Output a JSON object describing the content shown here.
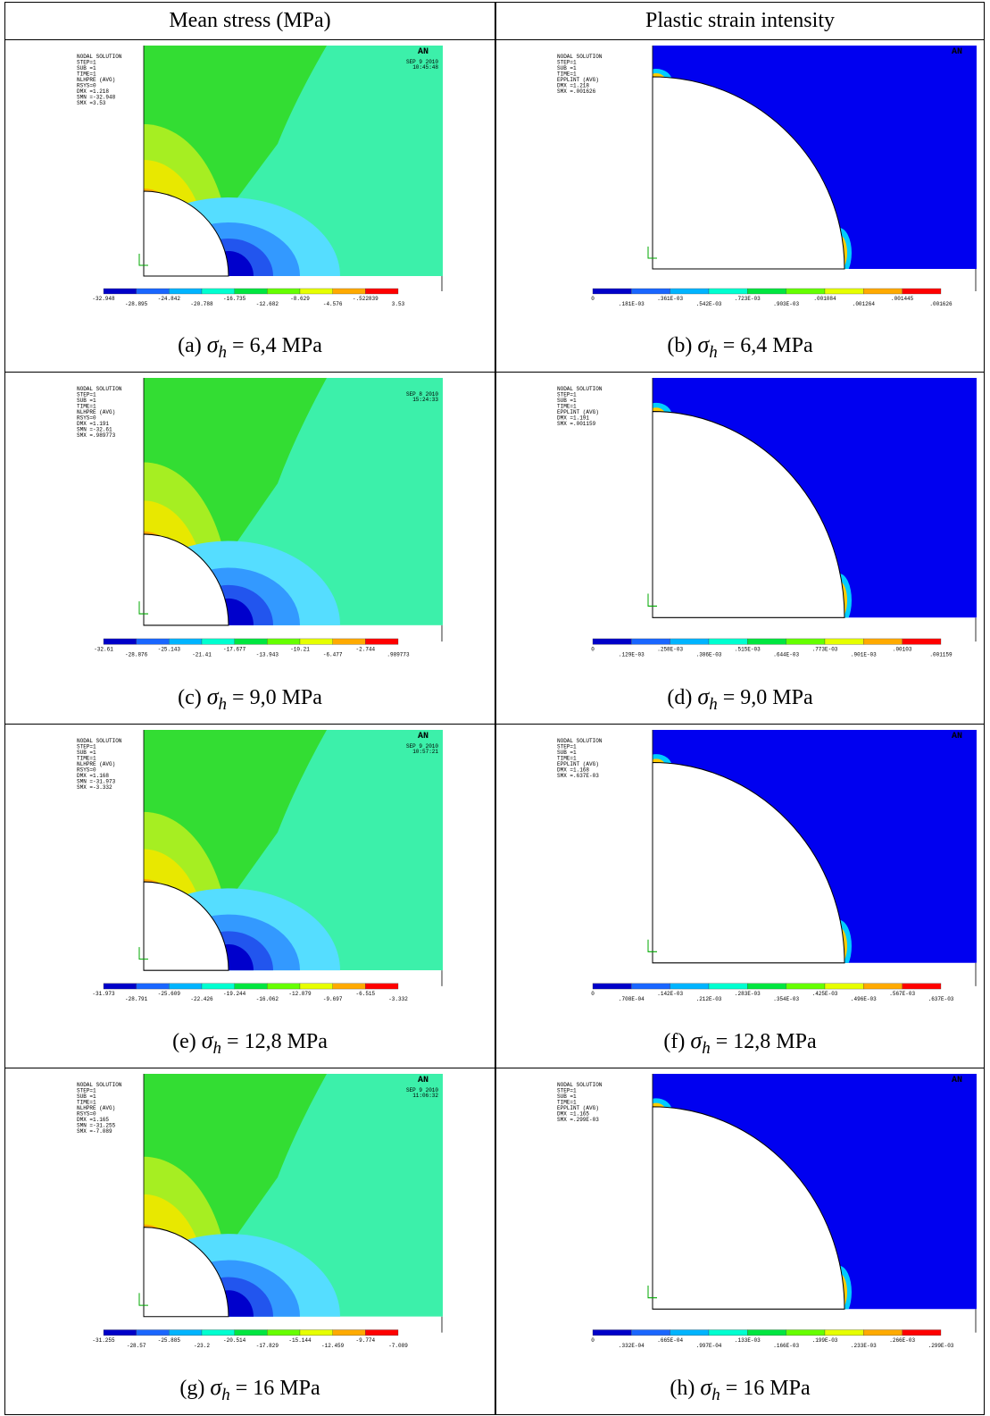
{
  "table": {
    "headers": [
      "Mean stress (MPa)",
      "Plastic strain intensity"
    ],
    "rows": [
      [
        {
          "plot": {
            "info": [
              "NODAL SOLUTION",
              "STEP=1",
              "SUB =1",
              "TIME=1",
              "NLHPRE    (AVG)",
              "RSYS=0",
              "DMX =1.218",
              "SMN =-32.948",
              "SMX =3.53"
            ],
            "date": "SEP  9 2010",
            "time": "10:45:48",
            "logo": "AN",
            "legend": [
              "-32.948",
              "-28.895",
              "-24.842",
              "-20.788",
              "-16.735",
              "-12.682",
              "-8.629",
              "-4.576",
              "-.522839",
              "3.53"
            ]
          },
          "caption": {
            "label": "(a)",
            "symbol": "σ",
            "sub": "h",
            "value": "= 6,4  MPa"
          }
        },
        {
          "plot": {
            "info": [
              "NODAL SOLUTION",
              "STEP=1",
              "SUB =1",
              "TIME=1",
              "EPPLINT  (AVG)",
              "DMX =1.218",
              "SMX =.001626"
            ],
            "logo": "AN",
            "legend": [
              "0",
              ".181E-03",
              ".361E-03",
              ".542E-03",
              ".723E-03",
              ".903E-03",
              ".001084",
              ".001264",
              ".001445",
              ".001626"
            ]
          },
          "caption": {
            "label": "(b)",
            "symbol": "σ",
            "sub": "h",
            "value": "= 6,4 MPa"
          }
        }
      ],
      [
        {
          "plot": {
            "info": [
              "NODAL SOLUTION",
              "STEP=1",
              "SUB =1",
              "TIME=1",
              "NLHPRE    (AVG)",
              "RSYS=0",
              "DMX =1.191",
              "SMN =-32.61",
              "SMX =.989773"
            ],
            "date": "SEP  8 2010",
            "time": "15:24:33",
            "legend": [
              "-32.61",
              "-28.876",
              "-25.143",
              "-21.41",
              "-17.677",
              "-13.943",
              "-10.21",
              "-6.477",
              "-2.744",
              ".989773"
            ]
          },
          "caption": {
            "label": "(c)",
            "symbol": "σ",
            "sub": "h",
            "value": "= 9,0 MPa"
          }
        },
        {
          "plot": {
            "info": [
              "NODAL SOLUTION",
              "STEP=1",
              "SUB =1",
              "TIME=1",
              "EPPLINT  (AVG)",
              "DMX =1.191",
              "SMX =.001159"
            ],
            "legend": [
              "0",
              ".129E-03",
              ".258E-03",
              ".386E-03",
              ".515E-03",
              ".644E-03",
              ".773E-03",
              ".901E-03",
              ".00103",
              ".001159"
            ]
          },
          "caption": {
            "label": "(d)",
            "symbol": "σ",
            "sub": "h",
            "value": "= 9,0 MPa"
          }
        }
      ],
      [
        {
          "plot": {
            "info": [
              "NODAL SOLUTION",
              "STEP=1",
              "SUB =1",
              "TIME=1",
              "NLHPRE    (AVG)",
              "RSYS=0",
              "DMX =1.168",
              "SMN =-31.973",
              "SMX =-3.332"
            ],
            "date": "SEP  9 2010",
            "time": "10:57:21",
            "logo": "AN",
            "legend": [
              "-31.973",
              "-28.791",
              "-25.609",
              "-22.426",
              "-19.244",
              "-16.062",
              "-12.879",
              "-9.697",
              "-6.515",
              "-3.332"
            ]
          },
          "caption": {
            "label": "(e)",
            "symbol": "σ",
            "sub": "h",
            "value": "= 12,8 MPa"
          }
        },
        {
          "plot": {
            "info": [
              "NODAL SOLUTION",
              "STEP=1",
              "SUB =1",
              "TIME=1",
              "EPPLINT  (AVG)",
              "DMX =1.168",
              "SMX =.637E-03"
            ],
            "logo": "AN",
            "legend": [
              "0",
              ".708E-04",
              ".142E-03",
              ".212E-03",
              ".283E-03",
              ".354E-03",
              ".425E-03",
              ".496E-03",
              ".567E-03",
              ".637E-03"
            ]
          },
          "caption": {
            "label": "(f)",
            "symbol": "σ",
            "sub": "h",
            "value": "= 12,8 MPa"
          }
        }
      ],
      [
        {
          "plot": {
            "info": [
              "NODAL SOLUTION",
              "STEP=1",
              "SUB =1",
              "TIME=1",
              "NLHPRE    (AVG)",
              "RSYS=0",
              "DMX =1.165",
              "SMN =-31.255",
              "SMX =-7.089"
            ],
            "date": "SEP  9 2010",
            "time": "11:06:32",
            "logo": "AN",
            "legend": [
              "-31.255",
              "-28.57",
              "-25.885",
              "-23.2",
              "-20.514",
              "-17.829",
              "-15.144",
              "-12.459",
              "-9.774",
              "-7.089"
            ]
          },
          "caption": {
            "label": "(g)",
            "symbol": "σ",
            "sub": "h",
            "value": "= 16 MPa"
          }
        },
        {
          "plot": {
            "info": [
              "NODAL SOLUTION",
              "STEP=1",
              "SUB =1",
              "TIME=1",
              "EPPLINT  (AVG)",
              "DMX =1.165",
              "SMX =.299E-03"
            ],
            "logo": "AN",
            "legend": [
              "0",
              ".332E-04",
              ".665E-04",
              ".997E-04",
              ".133E-03",
              ".166E-03",
              ".199E-03",
              ".233E-03",
              ".266E-03",
              ".299E-03"
            ]
          },
          "caption": {
            "label": "(h)",
            "symbol": "σ",
            "sub": "h",
            "value": "= 16 MPa"
          }
        }
      ]
    ]
  }
}
